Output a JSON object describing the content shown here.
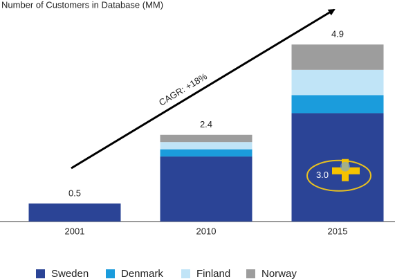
{
  "chart_data": {
    "type": "stacked_bar",
    "title": "Number of Customers in Database (MM)",
    "categories": [
      "2001",
      "2010",
      "2015"
    ],
    "series": [
      {
        "name": "Sweden",
        "color": "#2b4496",
        "values": [
          0.5,
          1.8,
          3.0
        ],
        "value_labels": [
          null,
          null,
          "3.0"
        ]
      },
      {
        "name": "Denmark",
        "color": "#1b9cdc",
        "values": [
          0,
          0.2,
          0.5
        ]
      },
      {
        "name": "Finland",
        "color": "#c0e4f7",
        "values": [
          0,
          0.2,
          0.7
        ]
      },
      {
        "name": "Norway",
        "color": "#9d9d9d",
        "values": [
          0,
          0.2,
          0.7
        ]
      }
    ],
    "totals": [
      0.5,
      2.4,
      4.9
    ],
    "ylim": [
      0,
      5.5
    ],
    "annotation": "CAGR: +18%"
  }
}
